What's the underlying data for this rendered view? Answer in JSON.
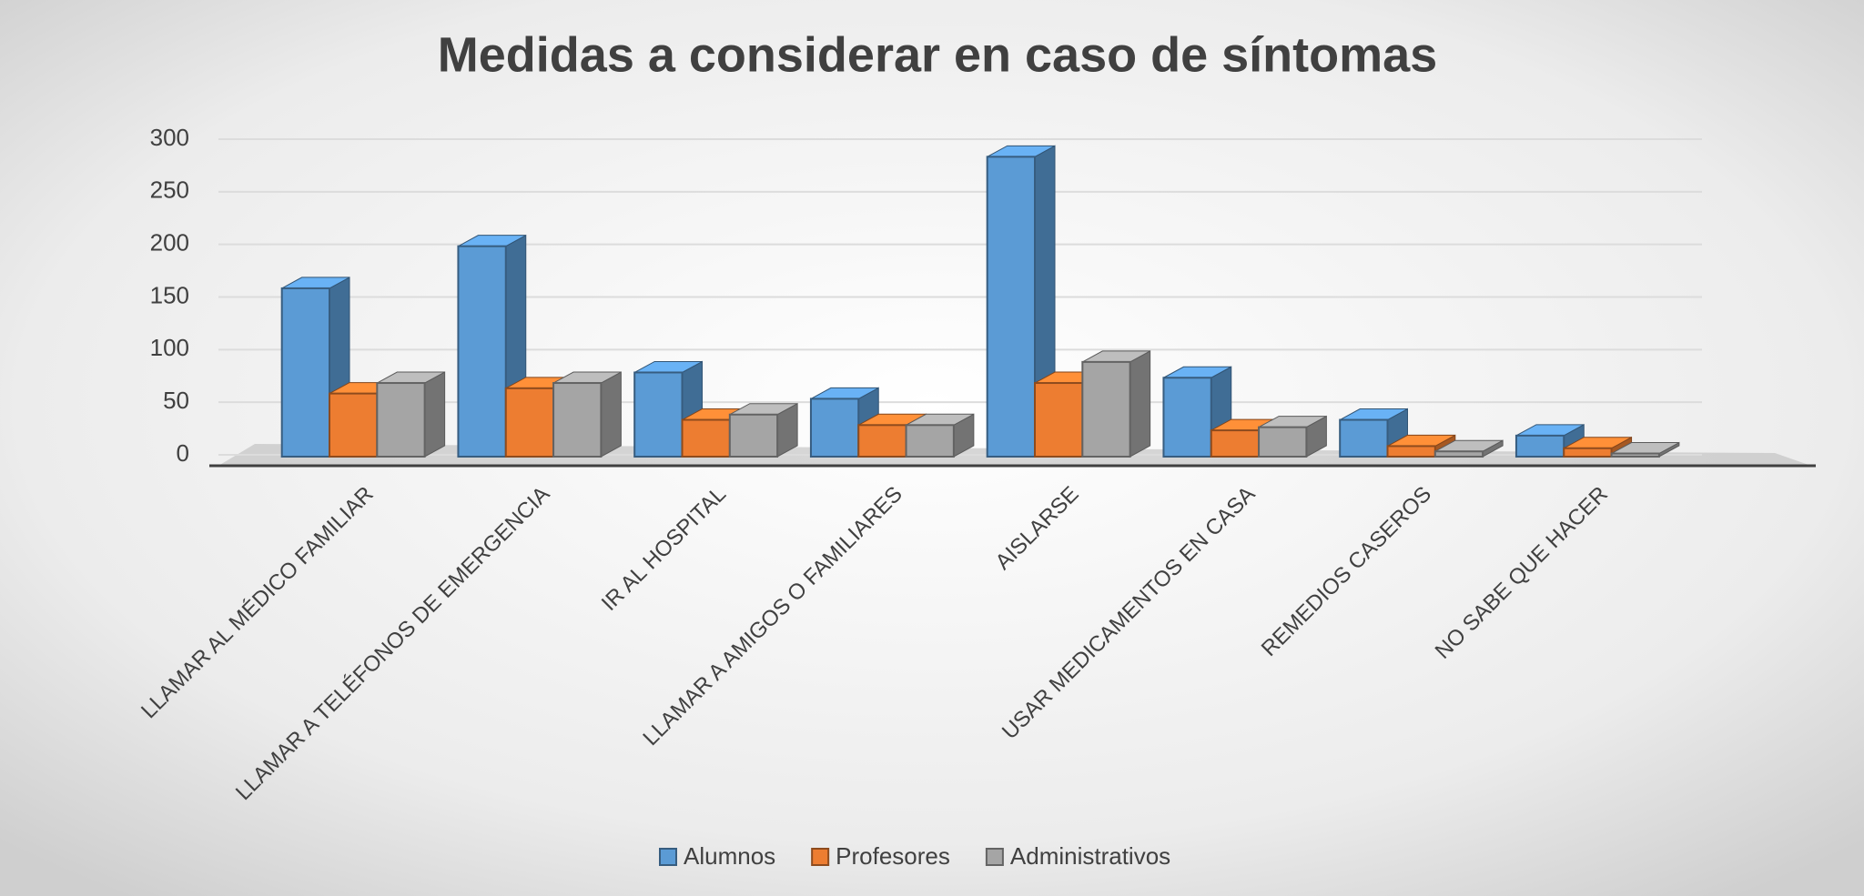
{
  "chart_data": {
    "type": "bar3d",
    "title": "Medidas a considerar en caso de síntomas",
    "categories": [
      "LLAMAR AL MÉDICO FAMILIAR",
      "LLAMAR A TELÉFONOS DE EMERGENCIA",
      "IR AL HOSPITAL",
      "LLAMAR A AMIGOS O FAMILIARES",
      "AISLARSE",
      "USAR MEDICAMENTOS EN CASA",
      "REMEDIOS CASEROS",
      "NO SABE QUE HACER"
    ],
    "series": [
      {
        "name": "Alumnos",
        "color": "#5b9bd5",
        "values": [
          160,
          200,
          80,
          55,
          285,
          75,
          35,
          20
        ]
      },
      {
        "name": "Profesores",
        "color": "#ed7d31",
        "values": [
          60,
          65,
          35,
          30,
          70,
          25,
          10,
          8
        ]
      },
      {
        "name": "Administrativos",
        "color": "#a5a5a5",
        "values": [
          70,
          70,
          40,
          30,
          90,
          28,
          5,
          3
        ]
      }
    ],
    "ylim": [
      0,
      300
    ],
    "yticks": [
      0,
      50,
      100,
      150,
      200,
      250,
      300
    ],
    "grid": true,
    "legend": "bottom"
  }
}
